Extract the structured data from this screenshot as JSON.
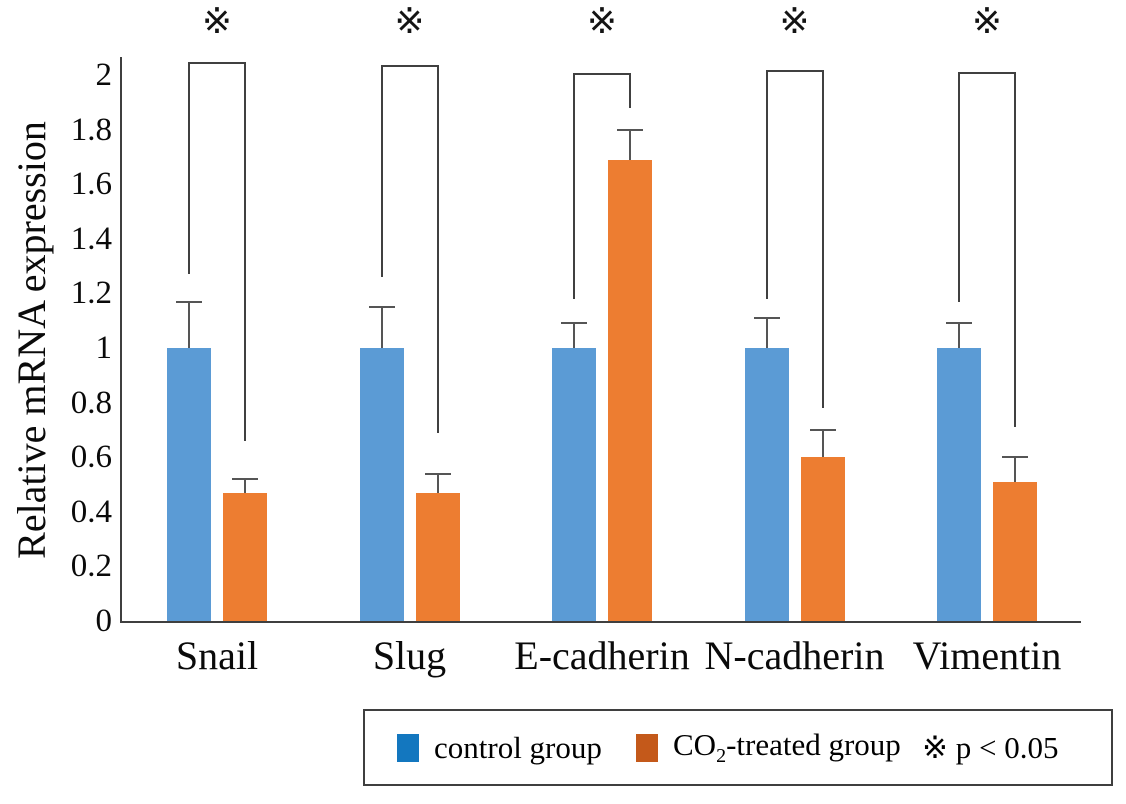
{
  "y_axis": {
    "label": "Relative mRNA expression",
    "ticks": [
      "0",
      "0.2",
      "0.4",
      "0.6",
      "0.8",
      "1",
      "1.2",
      "1.4",
      "1.6",
      "1.8",
      "2"
    ]
  },
  "x_axis": {
    "categories": [
      "Snail",
      "Slug",
      "E-cadherin",
      "N-cadherin",
      "Vimentin"
    ]
  },
  "legend": {
    "control_label": "control group",
    "co2_prefix": "CO",
    "co2_sub": "2",
    "co2_suffix": "-treated group",
    "sig_symbol": "※",
    "sig_text": "p < 0.05"
  },
  "colors": {
    "control_bar": "#5B9BD5",
    "co2_bar": "#ED7D31",
    "legend_control": "#1377BF",
    "legend_co2": "#C4591A",
    "axis": "#3F3F3F",
    "error_bar": "#555555",
    "bracket": "#404040"
  },
  "chart_data": {
    "type": "bar",
    "title": "",
    "xlabel": "",
    "ylabel": "Relative mRNA expression",
    "ylim": [
      0,
      2
    ],
    "ytick_step": 0.2,
    "grid": false,
    "legend_position": "bottom",
    "categories": [
      "Snail",
      "Slug",
      "E-cadherin",
      "N-cadherin",
      "Vimentin"
    ],
    "series": [
      {
        "name": "control group",
        "color": "#5B9BD5",
        "values": [
          1.0,
          1.0,
          1.0,
          1.0,
          1.0
        ],
        "errors_plus": [
          0.17,
          0.15,
          0.09,
          0.11,
          0.09
        ]
      },
      {
        "name": "CO2-treated group",
        "color": "#ED7D31",
        "values": [
          0.47,
          0.47,
          1.69,
          0.6,
          0.51
        ],
        "errors_plus": [
          0.05,
          0.07,
          0.11,
          0.1,
          0.09
        ]
      }
    ],
    "significance": {
      "symbol": "※",
      "note": "p < 0.05",
      "significant_comparisons": [
        "Snail: control vs CO2-treated",
        "Slug: control vs CO2-treated",
        "E-cadherin: control vs CO2-treated",
        "N-cadherin: control vs CO2-treated",
        "Vimentin: control vs CO2-treated"
      ]
    }
  }
}
